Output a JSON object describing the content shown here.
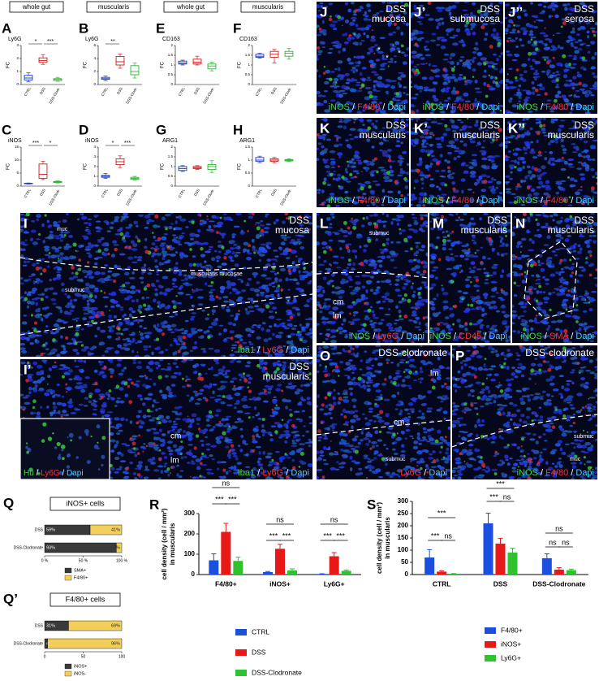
{
  "chart_data": [
    {
      "type": "box",
      "panel": "A",
      "header": "whole gut",
      "title": "Ly6G",
      "y_label": "FC",
      "categories": [
        "CTRL",
        "DSS",
        "DSS-Clodr."
      ],
      "colors": [
        "#1a35c8",
        "#d01818",
        "#2db52d"
      ],
      "values": [
        [
          0.2,
          0.35,
          0.5,
          0.7,
          0.9
        ],
        [
          1.55,
          1.7,
          1.85,
          2.05,
          2.3
        ],
        [
          0.25,
          0.3,
          0.4,
          0.45,
          0.55
        ]
      ],
      "ylim": [
        0,
        3
      ],
      "yticks": [
        0,
        1,
        2,
        3
      ],
      "annotations": [
        "*",
        "***"
      ]
    },
    {
      "type": "box",
      "panel": "B",
      "header": "muscularis",
      "title": "Ly6G",
      "y_label": "FC",
      "categories": [
        "CTRL",
        "DSS",
        "DSS-Clodr."
      ],
      "colors": [
        "#1a35c8",
        "#d01818",
        "#2db52d"
      ],
      "values": [
        [
          0.6,
          0.8,
          0.9,
          1.1,
          1.3
        ],
        [
          2.5,
          3.0,
          3.5,
          4.3,
          4.7
        ],
        [
          1.0,
          1.5,
          2.0,
          2.9,
          3.3
        ]
      ],
      "ylim": [
        0,
        6
      ],
      "yticks": [
        0,
        2,
        4,
        6
      ],
      "annotations": [
        "**"
      ]
    },
    {
      "type": "box",
      "panel": "E",
      "header": "whole gut",
      "title": "CD163",
      "y_label": "FC",
      "categories": [
        "CTRL",
        "DSS",
        "DSS-Clodr."
      ],
      "colors": [
        "#1a35c8",
        "#d01818",
        "#2db52d"
      ],
      "values": [
        [
          1.0,
          1.05,
          1.1,
          1.2,
          1.25
        ],
        [
          1.0,
          1.05,
          1.15,
          1.3,
          1.45
        ],
        [
          0.7,
          0.8,
          0.95,
          1.05,
          1.15
        ]
      ],
      "ylim": [
        0,
        2
      ],
      "yticks": [
        0,
        0.5,
        1,
        1.5,
        2
      ],
      "annotations": []
    },
    {
      "type": "box",
      "panel": "F",
      "header": "muscularis",
      "title": "CD163",
      "y_label": "FC",
      "categories": [
        "CTRL",
        "DSS",
        "DSS-Clodr."
      ],
      "colors": [
        "#1a35c8",
        "#d01818",
        "#2db52d"
      ],
      "values": [
        [
          1.35,
          1.4,
          1.45,
          1.55,
          1.6
        ],
        [
          1.1,
          1.4,
          1.55,
          1.7,
          1.8
        ],
        [
          1.3,
          1.45,
          1.6,
          1.7,
          1.85
        ]
      ],
      "ylim": [
        0,
        2
      ],
      "yticks": [
        0,
        0.5,
        1,
        1.5,
        2
      ],
      "annotations": []
    },
    {
      "type": "box",
      "panel": "C",
      "title": "iNOS",
      "y_label": "FC",
      "categories": [
        "CTRL",
        "DSS",
        "DSS-Clodr."
      ],
      "colors": [
        "#1a35c8",
        "#d01818",
        "#2db52d"
      ],
      "values": [
        [
          0.8,
          0.9,
          1,
          1.1,
          1.2
        ],
        [
          2.5,
          3,
          4.5,
          8.5,
          9.5
        ],
        [
          1.2,
          1.4,
          1.6,
          1.8,
          2
        ]
      ],
      "ylim": [
        0,
        15
      ],
      "yticks": [
        0,
        5,
        10,
        15
      ],
      "annotations": [
        "***",
        "*"
      ]
    },
    {
      "type": "box",
      "panel": "D",
      "title": "iNOS",
      "y_label": "FC",
      "categories": [
        "CTRL",
        "DSS",
        "DSS-Clodr."
      ],
      "colors": [
        "#1a35c8",
        "#d01818",
        "#2db52d"
      ],
      "values": [
        [
          0.8,
          0.9,
          1.0,
          1.1,
          1.3
        ],
        [
          1.9,
          2.2,
          2.5,
          2.8,
          3.1
        ],
        [
          0.6,
          0.7,
          0.8,
          0.9,
          1.0
        ]
      ],
      "ylim": [
        0,
        4
      ],
      "yticks": [
        0,
        1,
        2,
        3,
        4
      ],
      "annotations": [
        "*",
        "***"
      ]
    },
    {
      "type": "box",
      "panel": "G",
      "title": "ARG1",
      "y_label": "FC",
      "categories": [
        "CTRL",
        "DSS",
        "DSS-Clodr."
      ],
      "colors": [
        "#1a35c8",
        "#d01818",
        "#2db52d"
      ],
      "values": [
        [
          0.75,
          0.8,
          0.9,
          1.0,
          1.05
        ],
        [
          0.85,
          0.9,
          0.95,
          1.0,
          1.05
        ],
        [
          0.7,
          0.85,
          1.0,
          1.1,
          1.3
        ]
      ],
      "ylim": [
        0,
        2
      ],
      "yticks": [
        0,
        0.5,
        1,
        1.5,
        2
      ],
      "annotations": []
    },
    {
      "type": "box",
      "panel": "H",
      "title": "ARG1",
      "y_label": "FC",
      "categories": [
        "CTRL",
        "DSS",
        "DSS-Clodr."
      ],
      "colors": [
        "#1a35c8",
        "#d01818",
        "#2db52d"
      ],
      "values": [
        [
          0.9,
          0.95,
          1.0,
          1.1,
          1.15
        ],
        [
          0.9,
          0.95,
          1.0,
          1.05,
          1.1
        ],
        [
          0.95,
          0.97,
          1.0,
          1.02,
          1.05
        ]
      ],
      "ylim": [
        0,
        1.5
      ],
      "yticks": [
        0,
        0.5,
        1,
        1.5
      ],
      "annotations": []
    },
    {
      "type": "stacked_hbar",
      "panel": "Q",
      "title": "iNOS+ cells",
      "categories": [
        "DSS",
        "DSS-Clodronate"
      ],
      "series": [
        {
          "name": "SMA+",
          "color": "#3a3a3a",
          "values": [
            59,
            93
          ],
          "value_labels": [
            "59%",
            "93%"
          ]
        },
        {
          "name": "F4/80+",
          "color": "#f2cf5b",
          "values": [
            41,
            7
          ],
          "value_labels": [
            "41%",
            "7%"
          ]
        }
      ],
      "xlim": [
        0,
        100
      ],
      "xticks": [
        {
          "value": 0,
          "label": "0 %"
        },
        {
          "value": 50,
          "label": "50 %"
        },
        {
          "value": 100,
          "label": "100 %"
        }
      ]
    },
    {
      "type": "stacked_hbar",
      "panel": "Q’",
      "title": "F4/80+ cells",
      "categories": [
        "DSS",
        "DSS-Clodronate"
      ],
      "series": [
        {
          "name": "iNOS+",
          "color": "#3a3a3a",
          "values": [
            31,
            4
          ],
          "value_labels": [
            "31%",
            "4%"
          ]
        },
        {
          "name": "iNOS-",
          "color": "#f2cf5b",
          "values": [
            69,
            96
          ],
          "value_labels": [
            "69%",
            "96%"
          ]
        }
      ],
      "xlim": [
        0,
        100
      ],
      "xticks": [
        0,
        50,
        100
      ]
    },
    {
      "type": "bar",
      "panel": "R",
      "y_label": [
        "cell density (cell / mm²)",
        "in muscularis"
      ],
      "categories": [
        "F4/80+",
        "iNOS+",
        "Ly6G+"
      ],
      "series": [
        {
          "name": "CTRL",
          "color": "#1a4fe0",
          "values": [
            70,
            12,
            3
          ],
          "errors": [
            32,
            3,
            1
          ]
        },
        {
          "name": "DSS",
          "color": "#e81818",
          "values": [
            210,
            127,
            90
          ],
          "errors": [
            42,
            22,
            18
          ]
        },
        {
          "name": "DSS-Clodronate",
          "color": "#2ec22e",
          "values": [
            67,
            20,
            18
          ],
          "errors": [
            18,
            8,
            4
          ]
        }
      ],
      "ylim": [
        0,
        300
      ],
      "yticks": [
        0,
        100,
        200,
        300
      ],
      "annotations": [
        "***",
        "***",
        "ns",
        "***",
        "***",
        "ns",
        "***",
        "***",
        "ns"
      ]
    },
    {
      "type": "bar",
      "panel": "S",
      "y_label": [
        "cell density (cell / mm²)",
        "in muscularis"
      ],
      "categories": [
        "CTRL",
        "DSS",
        "DSS-Clodronate"
      ],
      "series": [
        {
          "name": "F4/80+",
          "color": "#1a4fe0",
          "values": [
            70,
            210,
            67
          ],
          "errors": [
            32,
            42,
            18
          ]
        },
        {
          "name": "iNOS+",
          "color": "#e81818",
          "values": [
            12,
            127,
            20
          ],
          "errors": [
            3,
            22,
            8
          ]
        },
        {
          "name": "Ly6G+",
          "color": "#2ec22e",
          "values": [
            3,
            90,
            18
          ],
          "errors": [
            1,
            18,
            4
          ]
        }
      ],
      "ylim": [
        0,
        300
      ],
      "yticks": [
        0,
        50,
        100,
        150,
        200,
        250,
        300
      ],
      "annotations": [
        "***",
        "ns",
        "***",
        "***",
        "ns",
        "***",
        "ns",
        "ns",
        "ns"
      ]
    }
  ],
  "images": [
    {
      "letter": "J",
      "title": [
        "DSS",
        "mucosa"
      ],
      "labels": [
        "*",
        "*",
        "*"
      ],
      "stain": [
        {
          "text": "iNOS",
          "color": "#3ddc3d"
        },
        {
          "text": " / ",
          "color": "#ffffff"
        },
        {
          "text": "F4/80",
          "color": "#ff3030"
        },
        {
          "text": " / ",
          "color": "#ffffff"
        },
        {
          "text": "Dapi",
          "color": "#4fd0ff"
        }
      ]
    },
    {
      "letter": "J’",
      "title": [
        "DSS",
        "submucosa"
      ],
      "labels": [],
      "stain": [
        {
          "text": "iNOS",
          "color": "#3ddc3d"
        },
        {
          "text": " / ",
          "color": "#ffffff"
        },
        {
          "text": "F4/80",
          "color": "#ff3030"
        },
        {
          "text": " / ",
          "color": "#ffffff"
        },
        {
          "text": "Dapi",
          "color": "#4fd0ff"
        }
      ]
    },
    {
      "letter": "J’’",
      "title": [
        "DSS",
        "serosa"
      ],
      "labels": [],
      "stain": [
        {
          "text": "iNOS",
          "color": "#3ddc3d"
        },
        {
          "text": " / ",
          "color": "#ffffff"
        },
        {
          "text": "F4/80",
          "color": "#ff3030"
        },
        {
          "text": " / ",
          "color": "#ffffff"
        },
        {
          "text": "Dapi",
          "color": "#4fd0ff"
        }
      ]
    },
    {
      "letter": "K",
      "title": [
        "DSS",
        "muscularis"
      ],
      "labels": [],
      "stain": [
        {
          "text": "iNOS",
          "color": "#3ddc3d"
        },
        {
          "text": " / ",
          "color": "#ffffff"
        },
        {
          "text": "F4/80",
          "color": "#ff3030"
        },
        {
          "text": " / ",
          "color": "#ffffff"
        },
        {
          "text": "Dapi",
          "color": "#4fd0ff"
        }
      ]
    },
    {
      "letter": "K’",
      "title": [
        "DSS",
        "muscularis"
      ],
      "labels": [],
      "stain": [
        {
          "text": "iNOS",
          "color": "#3ddc3d"
        },
        {
          "text": " / ",
          "color": "#ffffff"
        },
        {
          "text": "F4/80",
          "color": "#ff3030"
        },
        {
          "text": " / ",
          "color": "#ffffff"
        },
        {
          "text": "Dapi",
          "color": "#4fd0ff"
        }
      ]
    },
    {
      "letter": "K’’",
      "title": [
        "DSS",
        "muscularis"
      ],
      "labels": [],
      "stain": [
        {
          "text": "iNOS",
          "color": "#3ddc3d"
        },
        {
          "text": " / ",
          "color": "#ffffff"
        },
        {
          "text": "F4/80",
          "color": "#ff3030"
        },
        {
          "text": " / ",
          "color": "#ffffff"
        },
        {
          "text": "Dapi",
          "color": "#4fd0ff"
        }
      ]
    },
    {
      "letter": "I",
      "title": [
        "DSS",
        "mucosa"
      ],
      "labels": [
        "muc",
        "muscularis mucosae",
        "submuc"
      ],
      "stain": [
        {
          "text": "Iba1",
          "color": "#3ddc3d"
        },
        {
          "text": " / ",
          "color": "#ffffff"
        },
        {
          "text": "Ly6G",
          "color": "#ff3030"
        },
        {
          "text": " / ",
          "color": "#ffffff"
        },
        {
          "text": "Dapi",
          "color": "#4fd0ff"
        }
      ]
    },
    {
      "letter": "I’",
      "title": [
        "DSS",
        "muscularis"
      ],
      "labels": [
        "cm",
        "lm"
      ],
      "stain": [
        {
          "text": "Iba1",
          "color": "#3ddc3d"
        },
        {
          "text": " / ",
          "color": "#ffffff"
        },
        {
          "text": "Ly6G",
          "color": "#ff3030"
        },
        {
          "text": " / ",
          "color": "#ffffff"
        },
        {
          "text": "Dapi",
          "color": "#4fd0ff"
        }
      ],
      "inset_stain": [
        {
          "text": "Hu",
          "color": "#3ddc3d"
        },
        {
          "text": " / ",
          "color": "#ffffff"
        },
        {
          "text": "Ly6G",
          "color": "#ff3030"
        },
        {
          "text": " / ",
          "color": "#ffffff"
        },
        {
          "text": "Dapi",
          "color": "#4fd0ff"
        }
      ]
    },
    {
      "letter": "L",
      "title": [],
      "labels": [
        "submuc",
        "cm",
        "lm"
      ],
      "stain": [
        {
          "text": "iNOS",
          "color": "#3ddc3d"
        },
        {
          "text": " / ",
          "color": "#ffffff"
        },
        {
          "text": "Ly6G",
          "color": "#ff3030"
        },
        {
          "text": " / ",
          "color": "#ffffff"
        },
        {
          "text": "Dapi",
          "color": "#4fd0ff"
        }
      ]
    },
    {
      "letter": "M",
      "title": [
        "DSS",
        "muscularis"
      ],
      "labels": [],
      "stain": [
        {
          "text": "iNOS",
          "color": "#3ddc3d"
        },
        {
          "text": " / ",
          "color": "#ffffff"
        },
        {
          "text": "CD45",
          "color": "#ff3030"
        },
        {
          "text": " / ",
          "color": "#ffffff"
        },
        {
          "text": "Dapi",
          "color": "#4fd0ff"
        }
      ]
    },
    {
      "letter": "N",
      "title": [
        "DSS",
        "muscularis"
      ],
      "labels": [],
      "stain": [
        {
          "text": "iNOS",
          "color": "#3ddc3d"
        },
        {
          "text": " / ",
          "color": "#ffffff"
        },
        {
          "text": "SMA",
          "color": "#ff3030"
        },
        {
          "text": " / ",
          "color": "#ffffff"
        },
        {
          "text": "Dapi",
          "color": "#4fd0ff"
        }
      ]
    },
    {
      "letter": "O",
      "title": [
        "DSS-clodronate"
      ],
      "labels": [
        "lm",
        "cm",
        "submuc"
      ],
      "stain": [
        {
          "text": "Ly6G",
          "color": "#ff3030"
        },
        {
          "text": " / ",
          "color": "#ffffff"
        },
        {
          "text": "Dapi",
          "color": "#4fd0ff"
        }
      ]
    },
    {
      "letter": "P",
      "title": [
        "DSS-clodronate"
      ],
      "labels": [
        "submuc",
        "muc"
      ],
      "stain": [
        {
          "text": "iNOS",
          "color": "#3ddc3d"
        },
        {
          "text": " / ",
          "color": "#ffffff"
        },
        {
          "text": "F4/80",
          "color": "#ff3030"
        },
        {
          "text": " / ",
          "color": "#ffffff"
        },
        {
          "text": "Dapi",
          "color": "#4fd0ff"
        }
      ]
    }
  ]
}
